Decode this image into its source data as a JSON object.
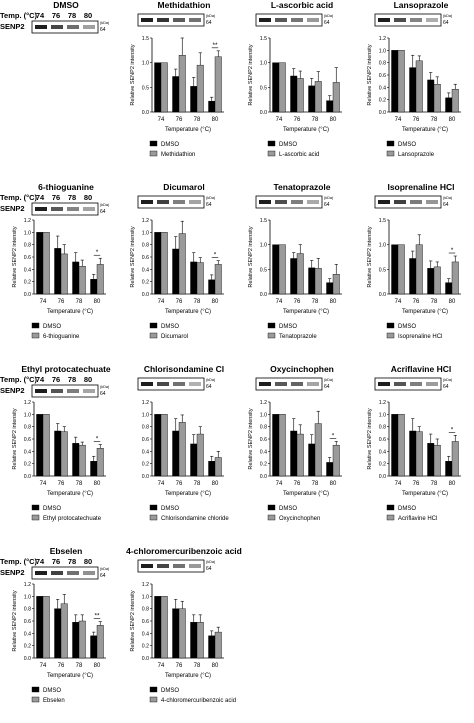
{
  "figure": {
    "temp_label": "Temp. (°C)",
    "protein_label": "SENP2",
    "kda_label": "(kDa)",
    "kda_value": "64",
    "temps": [
      "74",
      "76",
      "78",
      "80"
    ]
  },
  "chart_data": [
    {
      "type": "bar",
      "title": "DMSO",
      "categories": [
        "74",
        "76",
        "78",
        "80"
      ],
      "series": [],
      "xlabel": "",
      "ylabel": "",
      "ylim": [
        0,
        1.2
      ],
      "blot_only": true
    },
    {
      "type": "bar",
      "title": "Methidathion",
      "categories": [
        "74",
        "76",
        "78",
        "80"
      ],
      "xlabel": "Temperature (°C)",
      "ylabel": "Relative SENP2 intensity",
      "ylim": [
        0,
        1.5
      ],
      "series": [
        {
          "name": "DMSO",
          "values": [
            1.0,
            0.72,
            0.52,
            0.22
          ],
          "errors": [
            0,
            0.15,
            0.18,
            0.08
          ]
        },
        {
          "name": "Methidathion",
          "values": [
            1.0,
            1.15,
            0.95,
            1.12
          ],
          "errors": [
            0,
            0.35,
            0.25,
            0.12
          ]
        }
      ],
      "annotations": [
        {
          "category": "80",
          "text": "**"
        }
      ]
    },
    {
      "type": "bar",
      "title": "L-ascorbic acid",
      "categories": [
        "74",
        "76",
        "78",
        "80"
      ],
      "xlabel": "Temperature (°C)",
      "ylabel": "Relative SENP2 intensity",
      "ylim": [
        0,
        1.5
      ],
      "series": [
        {
          "name": "DMSO",
          "values": [
            1.0,
            0.73,
            0.53,
            0.23
          ],
          "errors": [
            0,
            0.15,
            0.15,
            0.1
          ]
        },
        {
          "name": "L-ascorbic acid",
          "values": [
            1.0,
            0.68,
            0.62,
            0.6
          ],
          "errors": [
            0,
            0.15,
            0.2,
            0.3
          ]
        }
      ]
    },
    {
      "type": "bar",
      "title": "Lansoprazole",
      "categories": [
        "74",
        "76",
        "78",
        "80"
      ],
      "xlabel": "Temperature (°C)",
      "ylabel": "Relative SENP2 intensity",
      "ylim": [
        0,
        1.2
      ],
      "series": [
        {
          "name": "DMSO",
          "values": [
            1.0,
            0.72,
            0.52,
            0.23
          ],
          "errors": [
            0,
            0.2,
            0.12,
            0.08
          ]
        },
        {
          "name": "Lansoprazole",
          "values": [
            1.0,
            0.83,
            0.45,
            0.37
          ],
          "errors": [
            0,
            0.08,
            0.12,
            0.08
          ]
        }
      ]
    },
    {
      "type": "bar",
      "title": "6-thioguanine",
      "categories": [
        "74",
        "76",
        "78",
        "80"
      ],
      "xlabel": "Temperature (°C)",
      "ylabel": "Relative SENP2 intensity",
      "ylim": [
        0,
        1.2
      ],
      "series": [
        {
          "name": "DMSO",
          "values": [
            1.0,
            0.74,
            0.52,
            0.24
          ],
          "errors": [
            0,
            0.2,
            0.15,
            0.08
          ]
        },
        {
          "name": "6-thioguanine",
          "values": [
            1.0,
            0.65,
            0.45,
            0.48
          ],
          "errors": [
            0,
            0.15,
            0.1,
            0.1
          ]
        }
      ],
      "annotations": [
        {
          "category": "80",
          "text": "*"
        }
      ]
    },
    {
      "type": "bar",
      "title": "Dicumarol",
      "categories": [
        "74",
        "76",
        "78",
        "80"
      ],
      "xlabel": "Temperature (°C)",
      "ylabel": "Relative SENP2 intensity",
      "ylim": [
        0,
        1.2
      ],
      "series": [
        {
          "name": "DMSO",
          "values": [
            1.0,
            0.73,
            0.52,
            0.23
          ],
          "errors": [
            0,
            0.2,
            0.15,
            0.08
          ]
        },
        {
          "name": "Dicumarol",
          "values": [
            1.0,
            0.98,
            0.51,
            0.48
          ],
          "errors": [
            0,
            0.2,
            0.08,
            0.06
          ]
        }
      ],
      "annotations": [
        {
          "category": "80",
          "text": "*"
        }
      ]
    },
    {
      "type": "bar",
      "title": "Tenatoprazole",
      "categories": [
        "74",
        "76",
        "78",
        "80"
      ],
      "xlabel": "Temperature (°C)",
      "ylabel": "Relative SENP2 intensity",
      "ylim": [
        0,
        1.5
      ],
      "series": [
        {
          "name": "DMSO",
          "values": [
            1.0,
            0.72,
            0.53,
            0.23
          ],
          "errors": [
            0,
            0.12,
            0.15,
            0.08
          ]
        },
        {
          "name": "Tenatoprazole",
          "values": [
            1.0,
            0.82,
            0.52,
            0.4
          ],
          "errors": [
            0,
            0.18,
            0.2,
            0.2
          ]
        }
      ]
    },
    {
      "type": "bar",
      "title": "Isoprenaline HCl",
      "categories": [
        "74",
        "76",
        "78",
        "80"
      ],
      "xlabel": "Temperature (°C)",
      "ylabel": "Relative SENP2 intensity",
      "ylim": [
        0,
        1.5
      ],
      "series": [
        {
          "name": "DMSO",
          "values": [
            1.0,
            0.72,
            0.52,
            0.23
          ],
          "errors": [
            0,
            0.15,
            0.15,
            0.08
          ]
        },
        {
          "name": "Isoprenaline HCl",
          "values": [
            1.0,
            1.0,
            0.55,
            0.65
          ],
          "errors": [
            0,
            0.2,
            0.1,
            0.12
          ]
        }
      ],
      "annotations": [
        {
          "category": "80",
          "text": "*"
        }
      ]
    },
    {
      "type": "bar",
      "title": "Ethyl protocatechuate",
      "categories": [
        "74",
        "76",
        "78",
        "80"
      ],
      "xlabel": "Temperature (°C)",
      "ylabel": "Relative SENP2 intensity",
      "ylim": [
        0,
        1.2
      ],
      "series": [
        {
          "name": "DMSO",
          "values": [
            1.0,
            0.73,
            0.53,
            0.24
          ],
          "errors": [
            0,
            0.12,
            0.1,
            0.08
          ]
        },
        {
          "name": "Ethyl protocatechuate",
          "values": [
            1.0,
            0.72,
            0.5,
            0.45
          ],
          "errors": [
            0,
            0.08,
            0.05,
            0.06
          ]
        }
      ],
      "annotations": [
        {
          "category": "80",
          "text": "*"
        }
      ]
    },
    {
      "type": "bar",
      "title": "Chlorisondamine Cl",
      "categories": [
        "74",
        "76",
        "78",
        "80"
      ],
      "xlabel": "Temperature (°C)",
      "ylabel": "",
      "ylim": [
        0,
        1.2
      ],
      "series": [
        {
          "name": "DMSO",
          "values": [
            1.0,
            0.73,
            0.52,
            0.24
          ],
          "errors": [
            0,
            0.2,
            0.15,
            0.08
          ]
        },
        {
          "name": "Chlorisondamine chloride",
          "values": [
            1.0,
            0.87,
            0.68,
            0.3
          ],
          "errors": [
            0,
            0.12,
            0.12,
            0.1
          ]
        }
      ]
    },
    {
      "type": "bar",
      "title": "Oxycinchophen",
      "categories": [
        "74",
        "76",
        "78",
        "80"
      ],
      "xlabel": "Temperature (°C)",
      "ylabel": "Relative SENP2 intensity",
      "ylim": [
        0,
        1.2
      ],
      "series": [
        {
          "name": "DMSO",
          "values": [
            1.0,
            0.73,
            0.52,
            0.22
          ],
          "errors": [
            0,
            0.2,
            0.15,
            0.08
          ]
        },
        {
          "name": "Oxycinchophen",
          "values": [
            1.0,
            0.68,
            0.85,
            0.5
          ],
          "errors": [
            0,
            0.15,
            0.2,
            0.06
          ]
        }
      ],
      "annotations": [
        {
          "category": "80",
          "text": "*"
        }
      ]
    },
    {
      "type": "bar",
      "title": "Acriflavine HCl",
      "categories": [
        "74",
        "76",
        "78",
        "80"
      ],
      "xlabel": "Temperature (°C)",
      "ylabel": "Relative SENP2 intensity",
      "ylim": [
        0,
        1.2
      ],
      "series": [
        {
          "name": "DMSO",
          "values": [
            1.0,
            0.73,
            0.53,
            0.24
          ],
          "errors": [
            0,
            0.2,
            0.15,
            0.08
          ]
        },
        {
          "name": "Acriflavine HCl",
          "values": [
            1.0,
            0.72,
            0.5,
            0.56
          ],
          "errors": [
            0,
            0.08,
            0.1,
            0.1
          ]
        }
      ],
      "annotations": [
        {
          "category": "80",
          "text": "*"
        }
      ]
    },
    {
      "type": "bar",
      "title": "Ebselen",
      "categories": [
        "74",
        "76",
        "78",
        "80"
      ],
      "xlabel": "Temperature (°C)",
      "ylabel": "Relative SENP2 intensity",
      "ylim": [
        0,
        1.2
      ],
      "series": [
        {
          "name": "DMSO",
          "values": [
            1.0,
            0.8,
            0.58,
            0.36
          ],
          "errors": [
            0,
            0.15,
            0.12,
            0.06
          ]
        },
        {
          "name": "Ebselen",
          "values": [
            1.0,
            0.88,
            0.6,
            0.53
          ],
          "errors": [
            0,
            0.15,
            0.1,
            0.06
          ]
        }
      ],
      "annotations": [
        {
          "category": "80",
          "text": "**"
        }
      ]
    },
    {
      "type": "bar",
      "title": "4-chloromercuribenzoic acid",
      "categories": [
        "74",
        "76",
        "78",
        "80"
      ],
      "xlabel": "Temperature (°C)",
      "ylabel": "Relative SENP2 intensity",
      "ylim": [
        0,
        1.2
      ],
      "series": [
        {
          "name": "DMSO",
          "values": [
            1.0,
            0.8,
            0.58,
            0.36
          ],
          "errors": [
            0,
            0.15,
            0.12,
            0.08
          ]
        },
        {
          "name": "4-chloromercuribenzoic acid",
          "values": [
            1.0,
            0.8,
            0.58,
            0.42
          ],
          "errors": [
            0,
            0.12,
            0.12,
            0.08
          ]
        }
      ]
    }
  ]
}
